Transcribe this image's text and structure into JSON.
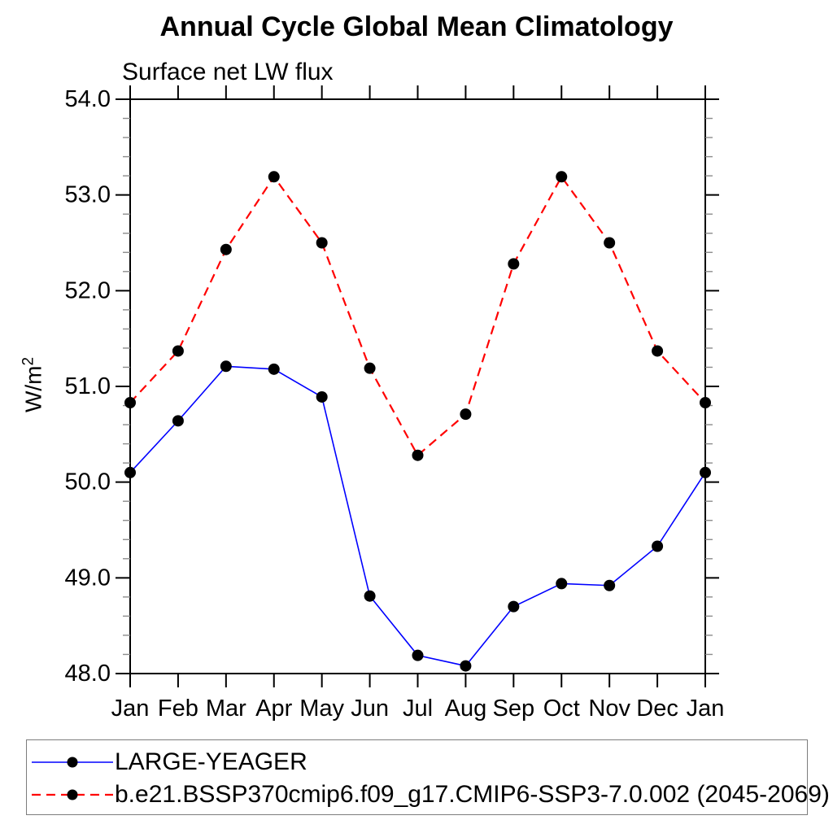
{
  "title": "Annual Cycle Global Mean Climatology",
  "subtitle": "Surface net LW flux",
  "chart_data": {
    "type": "line",
    "title": "Annual Cycle Global Mean Climatology",
    "subtitle": "Surface net LW flux",
    "ylabel": "W/m²",
    "ylabel_base": "W/m",
    "ylabel_sup": "2",
    "categories": [
      "Jan",
      "Feb",
      "Mar",
      "Apr",
      "May",
      "Jun",
      "Jul",
      "Aug",
      "Sep",
      "Oct",
      "Nov",
      "Dec",
      "Jan"
    ],
    "ylim": [
      48.0,
      54.0
    ],
    "ytick_interval": 1.0,
    "yminor_interval": 0.2,
    "ytick_labels": [
      "54.0",
      "53.0",
      "52.0",
      "51.0",
      "50.0",
      "49.0",
      "48.0"
    ],
    "grid": false,
    "legend_position": "bottom",
    "series": [
      {
        "name": "LARGE-YEAGER",
        "color": "#0000ff",
        "line_style": "solid",
        "line_width": 1.6,
        "marker": "filled-circle",
        "marker_color": "#000000",
        "values": [
          50.1,
          50.64,
          51.21,
          51.18,
          50.89,
          48.81,
          48.19,
          48.08,
          48.7,
          48.94,
          48.92,
          49.33,
          50.1
        ]
      },
      {
        "name": "b.e21.BSSP370cmip6.f09_g17.CMIP6-SSP3-7.0.002 (2045-2069)",
        "color": "#ff0000",
        "line_style": "dashed",
        "line_width": 2.2,
        "marker": "filled-circle",
        "marker_color": "#000000",
        "values": [
          50.83,
          51.37,
          52.43,
          53.19,
          52.5,
          51.19,
          50.28,
          50.71,
          52.28,
          53.19,
          52.5,
          51.37,
          50.83
        ]
      }
    ]
  },
  "colors": {
    "axis": "#000000",
    "minor_tick": "#8c8c8c",
    "legend_border": "#7d7d7d"
  }
}
